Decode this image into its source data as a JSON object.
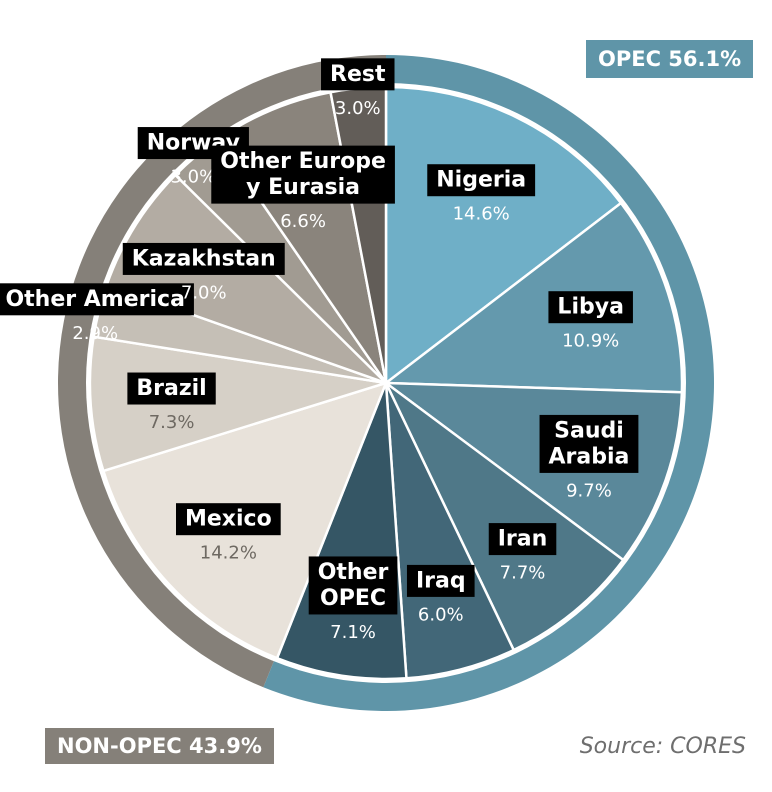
{
  "chart_data": {
    "type": "pie",
    "groups": [
      {
        "name": "OPEC 56.1%",
        "value": 56.1,
        "color": "#5f95a8"
      },
      {
        "name": "NON-OPEC 43.9%",
        "value": 43.9,
        "color": "#858079"
      }
    ],
    "slices": [
      {
        "label": [
          "Nigeria"
        ],
        "value_label": "14.6%",
        "value": 14.6,
        "group": "OPEC",
        "color": "#6fafc7",
        "value_color": "#ffffff"
      },
      {
        "label": [
          "Libya"
        ],
        "value_label": "10.9%",
        "value": 10.9,
        "group": "OPEC",
        "color": "#6499ad",
        "value_color": "#ffffff"
      },
      {
        "label": [
          "Saudi",
          "Arabia"
        ],
        "value_label": "9.7%",
        "value": 9.7,
        "group": "OPEC",
        "color": "#5a889a",
        "value_color": "#ffffff"
      },
      {
        "label": [
          "Iran"
        ],
        "value_label": "7.7%",
        "value": 7.7,
        "group": "OPEC",
        "color": "#4f7888",
        "value_color": "#ffffff"
      },
      {
        "label": [
          "Iraq"
        ],
        "value_label": "6.0%",
        "value": 6.0,
        "group": "OPEC",
        "color": "#426778",
        "value_color": "#ffffff"
      },
      {
        "label": [
          "Other",
          "OPEC"
        ],
        "value_label": "7.1%",
        "value": 7.1,
        "group": "OPEC",
        "color": "#355665",
        "value_color": "#ffffff"
      },
      {
        "label": [
          "Mexico"
        ],
        "value_label": "14.2%",
        "value": 14.2,
        "group": "NON-OPEC",
        "color": "#e8e2da",
        "value_color": "#6e6962"
      },
      {
        "label": [
          "Brazil"
        ],
        "value_label": "7.3%",
        "value": 7.3,
        "group": "NON-OPEC",
        "color": "#d6d0c7",
        "value_color": "#6e6962"
      },
      {
        "label": [
          "Other America"
        ],
        "value_label": "2.9%",
        "value": 2.9,
        "group": "NON-OPEC",
        "color": "#c5bfb6",
        "value_color": "#ffffff"
      },
      {
        "label": [
          "Kazakhstan"
        ],
        "value_label": "7.0%",
        "value": 7.0,
        "group": "NON-OPEC",
        "color": "#b3aca3",
        "value_color": "#ffffff"
      },
      {
        "label": [
          "Norway"
        ],
        "value_label": "3.0%",
        "value": 3.0,
        "group": "NON-OPEC",
        "color": "#a19b92",
        "value_color": "#ffffff"
      },
      {
        "label": [
          "Other Europe",
          "y Eurasia"
        ],
        "value_label": "6.6%",
        "value": 6.6,
        "group": "NON-OPEC",
        "color": "#8a847c",
        "value_color": "#ffffff"
      },
      {
        "label": [
          "Rest"
        ],
        "value_label": "3.0%",
        "value": 3.0,
        "group": "NON-OPEC",
        "color": "#625d58",
        "value_color": "#ffffff"
      }
    ]
  },
  "source": "Source: CORES"
}
